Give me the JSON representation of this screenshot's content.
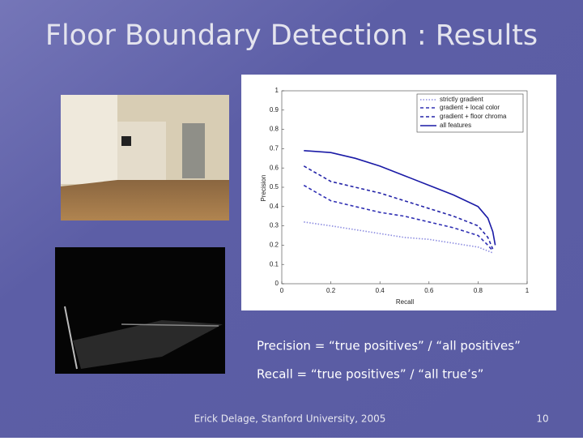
{
  "slide": {
    "title": "Floor Boundary Detection : Results",
    "formulas": [
      "Precision  = “true positives” / “all positives”",
      "Recall = “true positives” / “all true’s”"
    ],
    "footer": "Erick Delage, Stanford University, 2005",
    "page_number": "10"
  },
  "chart_data": {
    "type": "line",
    "x_label": "Recall",
    "y_label": "Precision",
    "x": [
      0.09,
      0.2,
      0.3,
      0.4,
      0.5,
      0.6,
      0.7,
      0.8,
      0.84,
      0.86,
      0.87
    ],
    "series": [
      {
        "name": "strictly gradient",
        "color": "#8c8ce0",
        "line_style": "dotted",
        "values": [
          0.32,
          0.3,
          0.28,
          0.26,
          0.24,
          0.23,
          0.21,
          0.19,
          0.17,
          0.16,
          null
        ]
      },
      {
        "name": "gradient + local color",
        "color": "#3030b4",
        "line_style": "dashed",
        "values": [
          0.51,
          0.43,
          0.4,
          0.37,
          0.35,
          0.32,
          0.29,
          0.25,
          0.2,
          0.17,
          null
        ]
      },
      {
        "name": "gradient + floor chroma",
        "color": "#2424a8",
        "line_style": "dashed",
        "values": [
          0.61,
          0.53,
          0.5,
          0.47,
          0.43,
          0.39,
          0.35,
          0.3,
          0.24,
          0.18,
          null
        ]
      },
      {
        "name": "all features",
        "color": "#1a1aa6",
        "line_style": "solid",
        "values": [
          0.69,
          0.68,
          0.65,
          0.61,
          0.56,
          0.51,
          0.46,
          0.4,
          0.34,
          0.27,
          0.2
        ]
      }
    ],
    "xlim": [
      0,
      1
    ],
    "ylim": [
      0,
      1
    ],
    "xticks": [
      0,
      0.2,
      0.4,
      0.6,
      0.8,
      1
    ],
    "yticks": [
      0,
      0.1,
      0.2,
      0.3,
      0.4,
      0.5,
      0.6,
      0.7,
      0.8,
      0.9,
      1
    ],
    "legend": "top-right"
  }
}
